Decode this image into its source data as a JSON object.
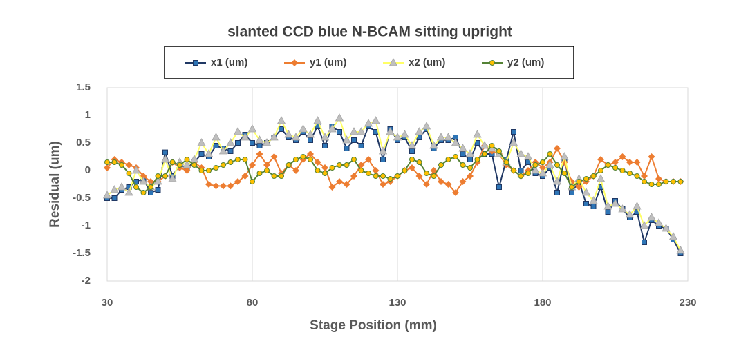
{
  "chart_data": {
    "type": "line",
    "title": "slanted CCD blue N-BCAM sitting upright",
    "x_label": "Stage Position (mm)",
    "y_label": "Residual (um)",
    "x": [
      30,
      32.5,
      35,
      37.5,
      40,
      42.5,
      45,
      47.5,
      50,
      52.5,
      55,
      57.5,
      60,
      62.5,
      65,
      67.5,
      70,
      72.5,
      75,
      77.5,
      80,
      82.5,
      85,
      87.5,
      90,
      92.5,
      95,
      97.5,
      100,
      102.5,
      105,
      107.5,
      110,
      112.5,
      115,
      117.5,
      120,
      122.5,
      125,
      127.5,
      130,
      132.5,
      135,
      137.5,
      140,
      142.5,
      145,
      147.5,
      150,
      152.5,
      155,
      157.5,
      160,
      162.5,
      165,
      167.5,
      170,
      172.5,
      175,
      177.5,
      180,
      182.5,
      185,
      187.5,
      190,
      192.5,
      195,
      197.5,
      200,
      202.5,
      205,
      207.5,
      210,
      212.5,
      215,
      217.5,
      220,
      222.5,
      225,
      227.5
    ],
    "series": [
      {
        "name": "x1 (um)",
        "color": "#203864",
        "marker": "square",
        "marker_color": "#2e75b6",
        "values": [
          -0.5,
          -0.5,
          -0.35,
          -0.3,
          -0.2,
          -0.15,
          -0.4,
          -0.35,
          0.33,
          -0.1,
          0.1,
          0.05,
          0.15,
          0.3,
          0.25,
          0.45,
          0.4,
          0.35,
          0.5,
          0.65,
          0.5,
          0.45,
          0.5,
          0.6,
          0.75,
          0.6,
          0.55,
          0.7,
          0.55,
          0.8,
          0.45,
          0.8,
          0.7,
          0.4,
          0.55,
          0.45,
          0.8,
          0.7,
          0.2,
          0.75,
          0.55,
          0.6,
          0.35,
          0.6,
          0.75,
          0.4,
          0.55,
          0.55,
          0.6,
          0.3,
          0.2,
          0.5,
          0.3,
          0.3,
          -0.3,
          0.2,
          0.7,
          0,
          0.15,
          -0.05,
          -0.1,
          0.05,
          -0.4,
          0.2,
          -0.4,
          -0.2,
          -0.6,
          -0.65,
          -0.3,
          -0.75,
          -0.55,
          -0.7,
          -0.85,
          -0.75,
          -1.3,
          -0.9,
          -1,
          -1.05,
          -1.25,
          -1.5
        ]
      },
      {
        "name": "y1 (um)",
        "color": "#ed7d31",
        "marker": "diamond",
        "marker_color": "#ed7d31",
        "values": [
          0.05,
          0.2,
          0.15,
          0.1,
          0.05,
          -0.1,
          -0.2,
          -0.2,
          -0.1,
          0.15,
          0.05,
          0,
          0.15,
          0.05,
          -0.25,
          -0.28,
          -0.28,
          -0.28,
          -0.2,
          -0.1,
          0.1,
          0.3,
          0.1,
          0.25,
          -0.05,
          0.1,
          0,
          0.2,
          0.3,
          0.15,
          0.05,
          -0.3,
          -0.2,
          -0.25,
          -0.1,
          0.1,
          0.2,
          0,
          -0.25,
          -0.2,
          -0.1,
          0,
          0.05,
          -0.1,
          -0.25,
          0,
          -0.2,
          -0.25,
          -0.4,
          -0.2,
          -0.1,
          0.15,
          0.45,
          0.35,
          0.3,
          0.1,
          0,
          -0.1,
          0,
          0.15,
          0.05,
          0.15,
          0.4,
          0.15,
          -0.2,
          -0.3,
          -0.2,
          -0.1,
          0.2,
          0.1,
          0.15,
          0.25,
          0.15,
          0.15,
          -0.1,
          0.25,
          -0.15,
          -0.2,
          -0.2,
          -0.2
        ]
      },
      {
        "name": "x2 (um)",
        "color": "#ffff66",
        "marker": "triangle",
        "marker_color": "#bfbfbf",
        "values": [
          -0.45,
          -0.35,
          -0.3,
          -0.4,
          0,
          -0.2,
          -0.3,
          -0.2,
          0.2,
          -0.15,
          0.15,
          0.1,
          0.2,
          0.5,
          0.3,
          0.6,
          0.35,
          0.5,
          0.7,
          0.6,
          0.75,
          0.55,
          0.5,
          0.6,
          0.9,
          0.65,
          0.6,
          0.75,
          0.65,
          0.9,
          0.6,
          0.75,
          0.95,
          0.55,
          0.7,
          0.7,
          0.85,
          0.9,
          0.35,
          0.7,
          0.6,
          0.65,
          0.45,
          0.7,
          0.8,
          0.45,
          0.6,
          0.6,
          0.5,
          0.4,
          0.3,
          0.65,
          0.45,
          0.4,
          0.3,
          0.15,
          0.5,
          0.3,
          0.25,
          0,
          -0.05,
          0.1,
          -0.2,
          0.25,
          -0.3,
          -0.15,
          -0.4,
          -0.55,
          -0.15,
          -0.65,
          -0.6,
          -0.7,
          -0.8,
          -0.65,
          -1,
          -0.85,
          -0.95,
          -1.05,
          -1.2,
          -1.45
        ]
      },
      {
        "name": "y2 (um)",
        "color": "#548235",
        "marker": "circle",
        "marker_color": "#ffc000",
        "values": [
          0.15,
          0.15,
          0.1,
          -0.05,
          -0.3,
          -0.4,
          -0.3,
          -0.1,
          -0.1,
          0.15,
          0.1,
          0.2,
          0.1,
          0,
          0,
          0.05,
          0.1,
          0.15,
          0.2,
          0.2,
          -0.2,
          -0.05,
          0,
          -0.1,
          -0.1,
          0.1,
          0.2,
          0.25,
          0.2,
          0,
          -0.05,
          0.05,
          0.1,
          0.1,
          0.2,
          0,
          -0.05,
          -0.1,
          -0.1,
          -0.15,
          -0.1,
          0,
          0.2,
          0.15,
          -0.05,
          -0.1,
          0.1,
          0.2,
          0.25,
          0.1,
          0.05,
          0.2,
          0.3,
          0.45,
          0.35,
          0.15,
          0,
          -0.1,
          -0.05,
          0.1,
          0.15,
          0.3,
          0.1,
          -0.05,
          -0.3,
          -0.2,
          -0.15,
          -0.1,
          0,
          0.1,
          0.05,
          0,
          -0.05,
          -0.1,
          -0.2,
          -0.25,
          -0.25,
          -0.2,
          -0.2,
          -0.2
        ]
      }
    ],
    "xlim": [
      30,
      230
    ],
    "xticks": [
      30,
      80,
      130,
      180,
      230
    ],
    "ylim": [
      -2,
      1.5
    ],
    "yticks": [
      -2,
      -1.5,
      -1,
      -0.5,
      0,
      0.5,
      1,
      1.5
    ],
    "grid": "x",
    "legend": "top"
  }
}
